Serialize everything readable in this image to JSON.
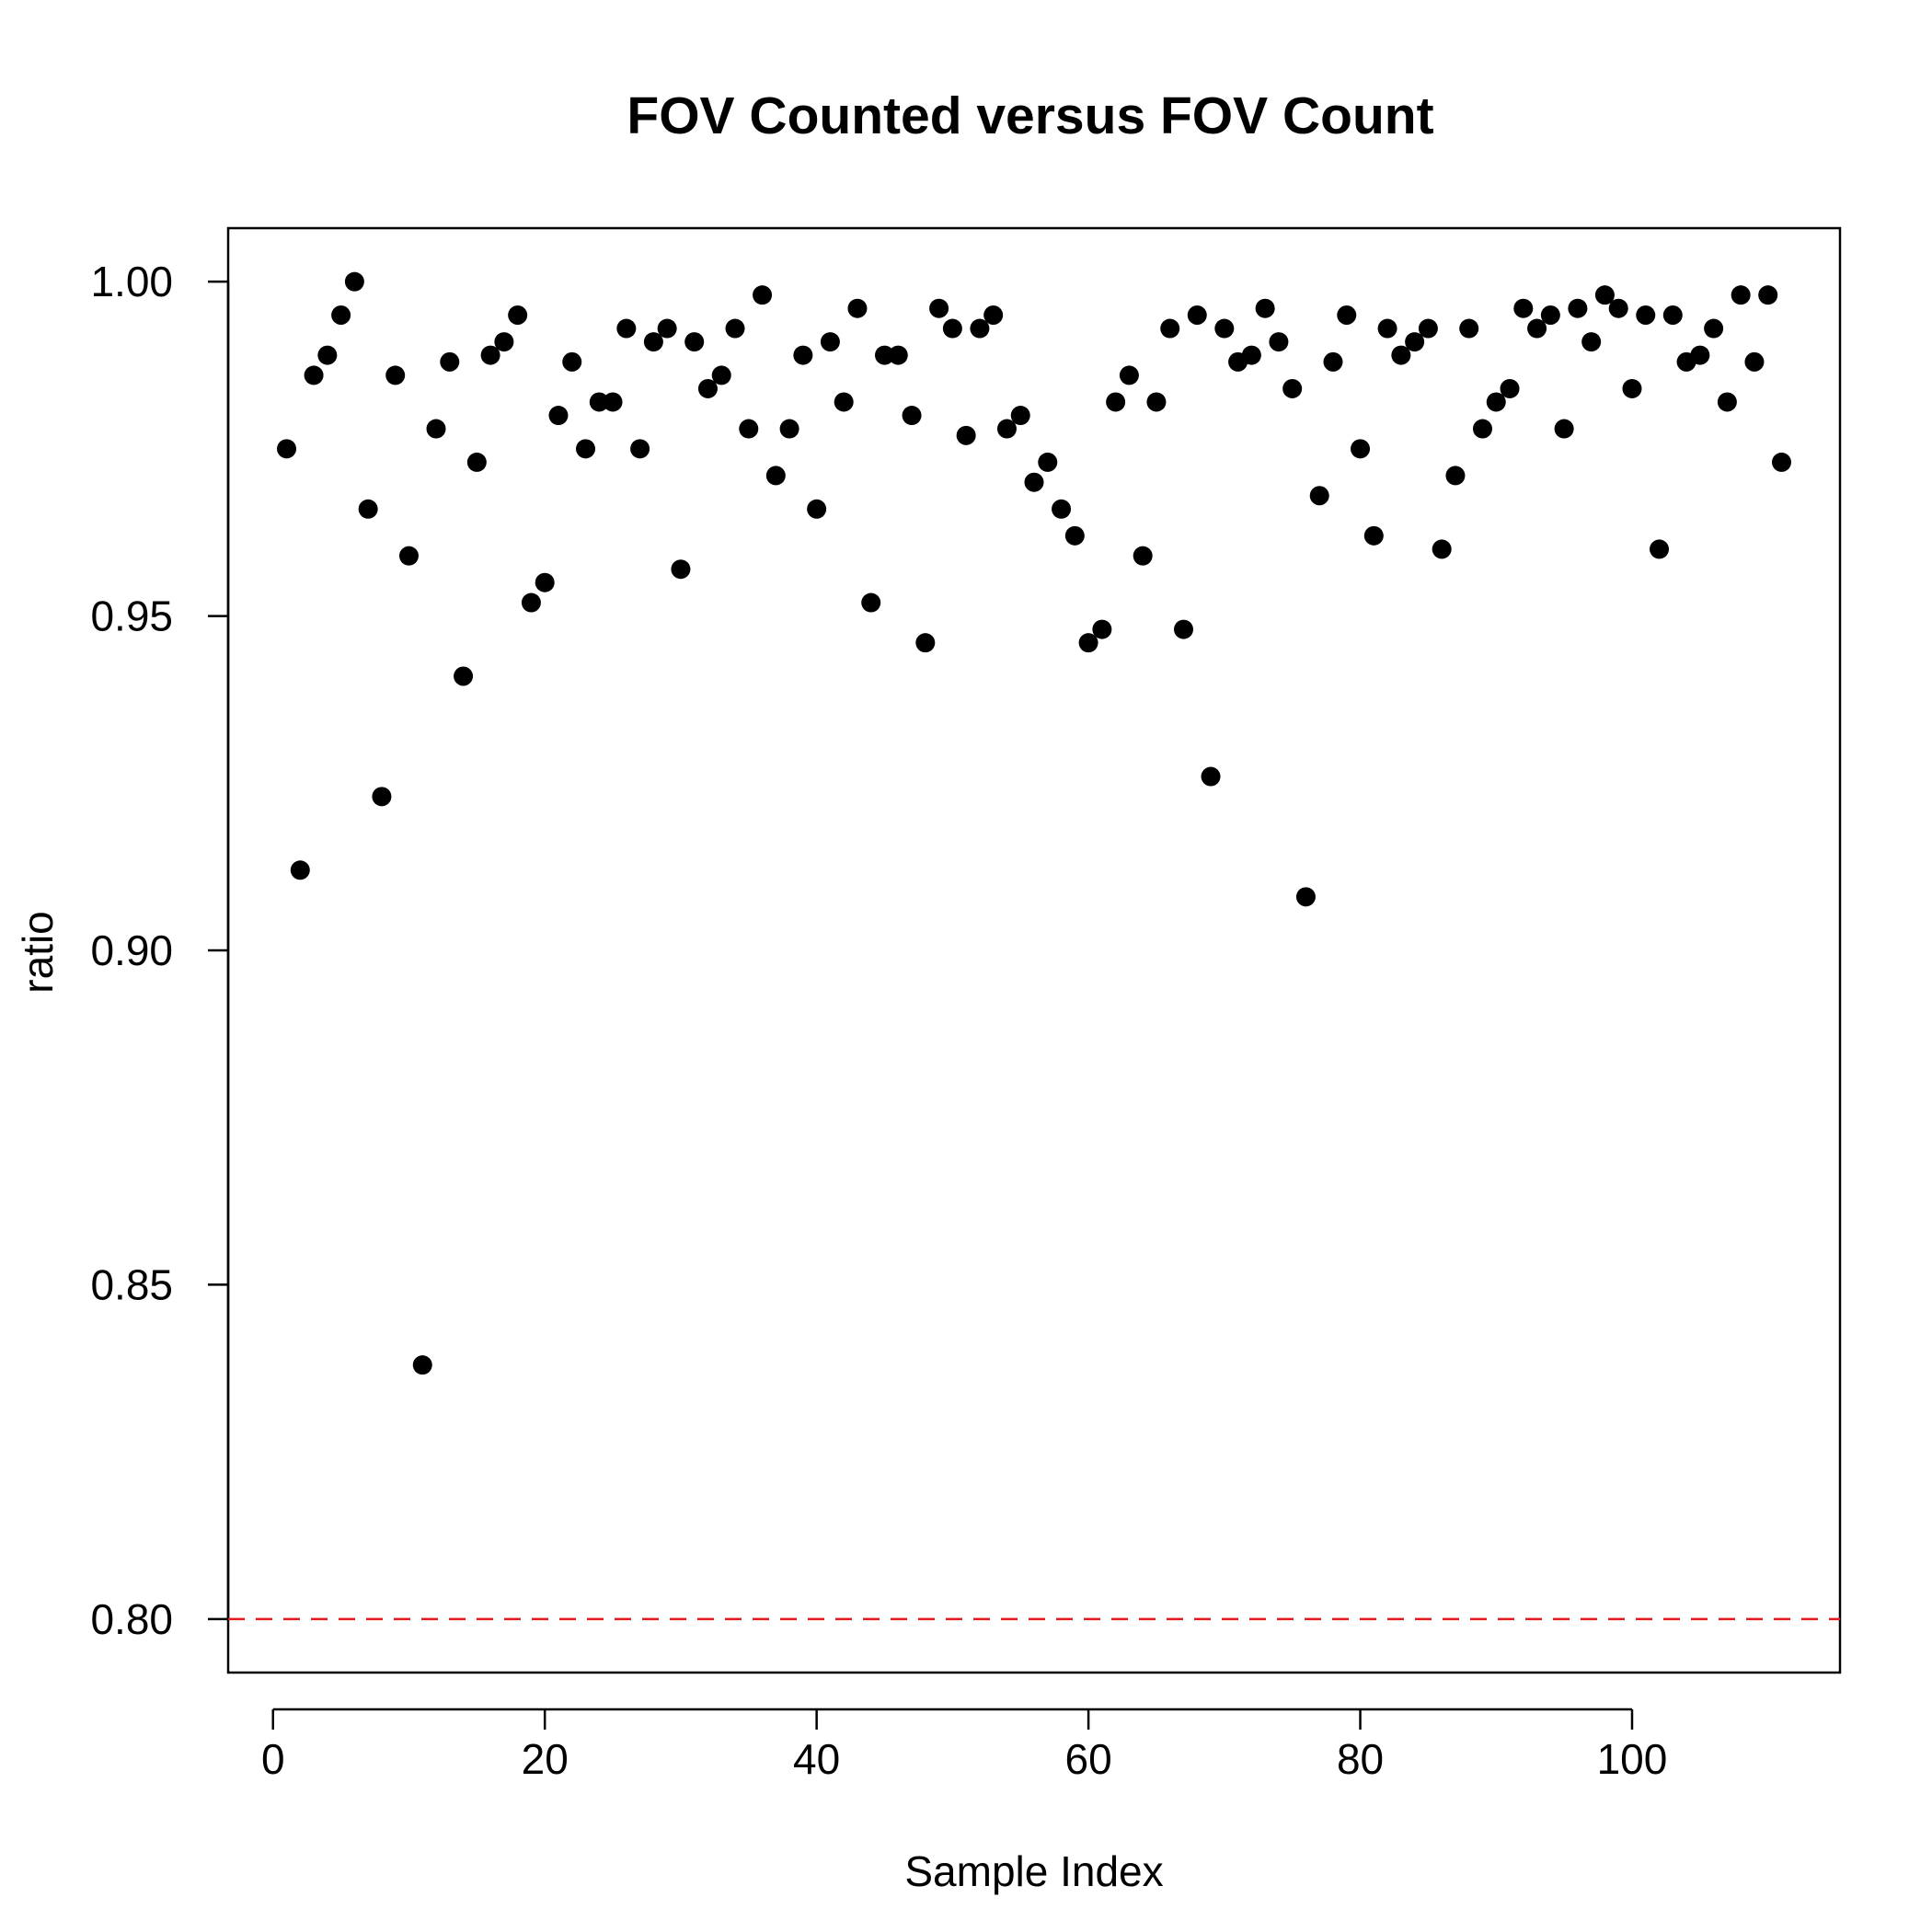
{
  "chart_data": {
    "type": "scatter",
    "title": "FOV Counted versus FOV Count",
    "xlabel": "Sample Index",
    "ylabel": "ratio",
    "xlim": [
      -3.3,
      115.3
    ],
    "ylim": [
      0.792,
      1.008
    ],
    "xticks": [
      0,
      20,
      40,
      60,
      80,
      100
    ],
    "xtick_labels": [
      "0",
      "20",
      "40",
      "60",
      "80",
      "100"
    ],
    "yticks": [
      0.8,
      0.85,
      0.9,
      0.95,
      1.0
    ],
    "ytick_labels": [
      "0.80",
      "0.85",
      "0.90",
      "0.95",
      "1.00"
    ],
    "grid": false,
    "point_color": "#000000",
    "reference_line": {
      "y": 0.8,
      "color": "#e41a1c",
      "style": "dashed"
    },
    "x": [
      1,
      2,
      3,
      4,
      5,
      6,
      7,
      8,
      9,
      10,
      11,
      12,
      13,
      14,
      15,
      16,
      17,
      18,
      19,
      20,
      21,
      22,
      23,
      24,
      25,
      26,
      27,
      28,
      29,
      30,
      31,
      32,
      33,
      34,
      35,
      36,
      37,
      38,
      39,
      40,
      41,
      42,
      43,
      44,
      45,
      46,
      47,
      48,
      49,
      50,
      51,
      52,
      53,
      54,
      55,
      56,
      57,
      58,
      59,
      60,
      61,
      62,
      63,
      64,
      65,
      66,
      67,
      68,
      69,
      70,
      71,
      72,
      73,
      74,
      75,
      76,
      77,
      78,
      79,
      80,
      81,
      82,
      83,
      84,
      85,
      86,
      87,
      88,
      89,
      90,
      91,
      92,
      93,
      94,
      95,
      96,
      97,
      98,
      99,
      100,
      101,
      102,
      103,
      104,
      105,
      106,
      107,
      108,
      109,
      110,
      111
    ],
    "y": [
      0.975,
      0.912,
      0.986,
      0.989,
      0.995,
      1.0,
      0.966,
      0.923,
      0.986,
      0.959,
      0.838,
      0.978,
      0.988,
      0.941,
      0.973,
      0.989,
      0.991,
      0.995,
      0.952,
      0.955,
      0.98,
      0.988,
      0.975,
      0.982,
      0.982,
      0.993,
      0.975,
      0.991,
      0.993,
      0.957,
      0.991,
      0.984,
      0.986,
      0.993,
      0.978,
      0.998,
      0.971,
      0.978,
      0.989,
      0.966,
      0.991,
      0.982,
      0.996,
      0.952,
      0.989,
      0.989,
      0.98,
      0.946,
      0.996,
      0.993,
      0.977,
      0.993,
      0.995,
      0.978,
      0.98,
      0.97,
      0.973,
      0.966,
      0.962,
      0.946,
      0.948,
      0.982,
      0.986,
      0.959,
      0.982,
      0.993,
      0.948,
      0.995,
      0.926,
      0.993,
      0.988,
      0.989,
      0.996,
      0.991,
      0.984,
      0.908,
      0.968,
      0.988,
      0.995,
      0.975,
      0.962,
      0.993,
      0.989,
      0.991,
      0.993,
      0.96,
      0.971,
      0.993,
      0.978,
      0.982,
      0.984,
      0.996,
      0.993,
      0.995,
      0.978,
      0.996,
      0.991,
      0.998,
      0.996,
      0.984,
      0.995,
      0.96,
      0.995,
      0.988,
      0.989,
      0.993,
      0.982,
      0.998,
      0.988,
      0.998,
      0.973
    ]
  }
}
